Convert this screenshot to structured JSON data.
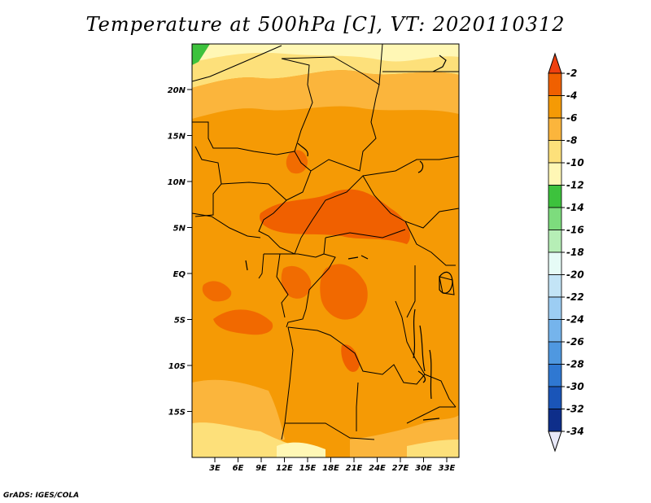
{
  "title": "Temperature at 500hPa [C], VT: 2020110312",
  "credit": "GrADS: IGES/COLA",
  "map": {
    "lat_labels": [
      "20N",
      "15N",
      "10N",
      "5N",
      "EQ",
      "5S",
      "10S",
      "15S"
    ],
    "lon_labels": [
      "3E",
      "6E",
      "9E",
      "12E",
      "15E",
      "18E",
      "21E",
      "24E",
      "27E",
      "30E",
      "33E"
    ]
  },
  "colorbar": {
    "labels": [
      "-2",
      "-4",
      "-6",
      "-8",
      "-10",
      "-12",
      "-14",
      "-16",
      "-18",
      "-20",
      "-22",
      "-24",
      "-26",
      "-28",
      "-30",
      "-32",
      "-34"
    ],
    "colors": [
      "#ee4010",
      "#f06000",
      "#f59a05",
      "#fbb53c",
      "#fde07a",
      "#fff7b5",
      "#3dc23d",
      "#7ddc7d",
      "#b6eeb6",
      "#e6fbf6",
      "#c3e4f6",
      "#9ccdf3",
      "#75b4ec",
      "#4f98e0",
      "#2f78d2",
      "#1a55b8",
      "#0e2e8a",
      "#0a1468"
    ],
    "top_color": "#ee4010",
    "bottom_color": "#e8e8f8"
  }
}
